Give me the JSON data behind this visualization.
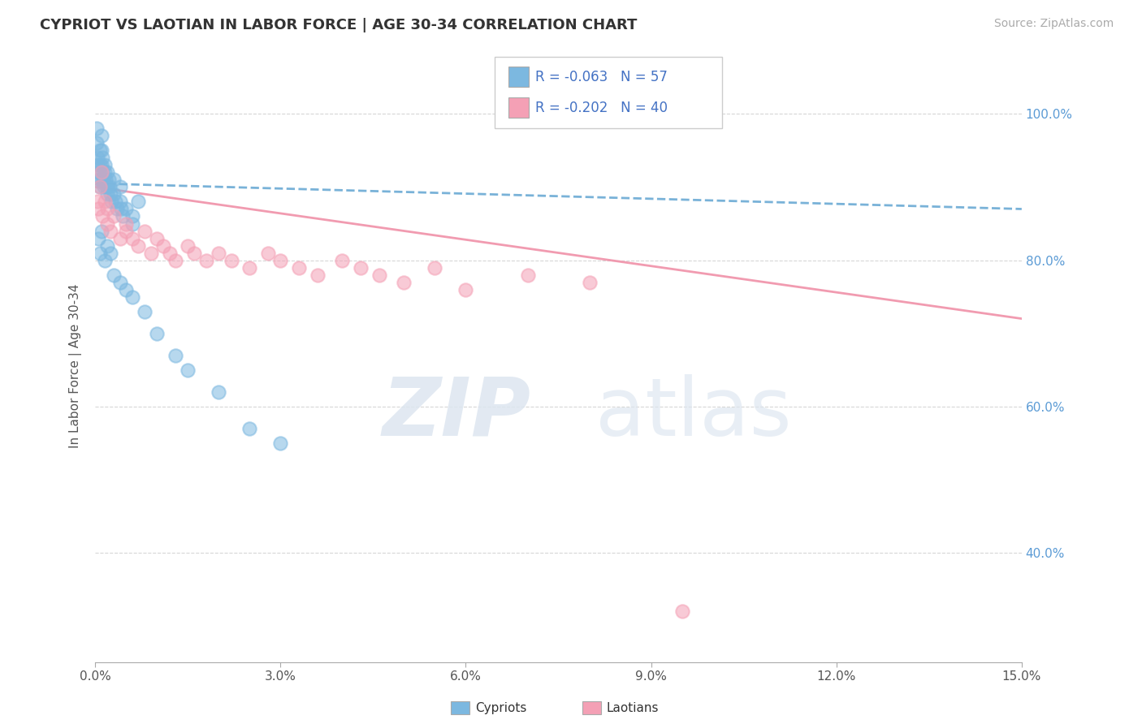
{
  "title": "CYPRIOT VS LAOTIAN IN LABOR FORCE | AGE 30-34 CORRELATION CHART",
  "source_text": "Source: ZipAtlas.com",
  "xlabel": "",
  "ylabel": "In Labor Force | Age 30-34",
  "xlim": [
    0.0,
    0.15
  ],
  "ylim": [
    0.25,
    1.06
  ],
  "xticks": [
    0.0,
    0.03,
    0.06,
    0.09,
    0.12,
    0.15
  ],
  "xtick_labels": [
    "0.0%",
    "3.0%",
    "6.0%",
    "9.0%",
    "12.0%",
    "15.0%"
  ],
  "yticks_right": [
    0.4,
    0.6,
    0.8,
    1.0
  ],
  "ytick_right_labels": [
    "40.0%",
    "60.0%",
    "80.0%",
    "100.0%"
  ],
  "legend_r1": "R = -0.063",
  "legend_n1": "N = 57",
  "legend_r2": "R = -0.202",
  "legend_n2": "N = 40",
  "cypriot_color": "#7cb8e0",
  "laotian_color": "#f4a0b5",
  "trend_blue_color": "#6baad4",
  "trend_pink_color": "#f090a8",
  "background_color": "#ffffff",
  "cypriot_x": [
    0.0002,
    0.0002,
    0.0003,
    0.0004,
    0.0005,
    0.0006,
    0.0007,
    0.0008,
    0.0008,
    0.0009,
    0.001,
    0.001,
    0.001,
    0.0012,
    0.0012,
    0.0013,
    0.0014,
    0.0015,
    0.0016,
    0.0017,
    0.0018,
    0.0019,
    0.002,
    0.002,
    0.0022,
    0.0023,
    0.0025,
    0.0026,
    0.003,
    0.003,
    0.0032,
    0.0035,
    0.004,
    0.004,
    0.0042,
    0.0045,
    0.005,
    0.006,
    0.006,
    0.007,
    0.0005,
    0.0008,
    0.001,
    0.0015,
    0.002,
    0.0025,
    0.003,
    0.004,
    0.005,
    0.006,
    0.008,
    0.01,
    0.013,
    0.015,
    0.02,
    0.025,
    0.03
  ],
  "cypriot_y": [
    0.98,
    0.96,
    0.94,
    0.93,
    0.92,
    0.91,
    0.9,
    0.95,
    0.93,
    0.91,
    0.97,
    0.95,
    0.93,
    0.94,
    0.92,
    0.91,
    0.9,
    0.93,
    0.92,
    0.91,
    0.9,
    0.89,
    0.92,
    0.9,
    0.91,
    0.9,
    0.89,
    0.88,
    0.91,
    0.89,
    0.88,
    0.87,
    0.9,
    0.88,
    0.87,
    0.86,
    0.87,
    0.86,
    0.85,
    0.88,
    0.83,
    0.81,
    0.84,
    0.8,
    0.82,
    0.81,
    0.78,
    0.77,
    0.76,
    0.75,
    0.73,
    0.7,
    0.67,
    0.65,
    0.62,
    0.57,
    0.55
  ],
  "laotian_x": [
    0.0003,
    0.0005,
    0.0008,
    0.001,
    0.0012,
    0.0015,
    0.002,
    0.002,
    0.0025,
    0.003,
    0.004,
    0.005,
    0.005,
    0.006,
    0.007,
    0.008,
    0.009,
    0.01,
    0.011,
    0.012,
    0.013,
    0.015,
    0.016,
    0.018,
    0.02,
    0.022,
    0.025,
    0.028,
    0.03,
    0.033,
    0.036,
    0.04,
    0.043,
    0.046,
    0.05,
    0.055,
    0.06,
    0.07,
    0.08,
    0.095
  ],
  "laotian_y": [
    0.88,
    0.87,
    0.9,
    0.92,
    0.86,
    0.88,
    0.85,
    0.87,
    0.84,
    0.86,
    0.83,
    0.85,
    0.84,
    0.83,
    0.82,
    0.84,
    0.81,
    0.83,
    0.82,
    0.81,
    0.8,
    0.82,
    0.81,
    0.8,
    0.81,
    0.8,
    0.79,
    0.81,
    0.8,
    0.79,
    0.78,
    0.8,
    0.79,
    0.78,
    0.77,
    0.79,
    0.76,
    0.78,
    0.77,
    0.32
  ],
  "trend_cy_x0": 0.0,
  "trend_cy_x1": 0.15,
  "trend_cy_y0": 0.905,
  "trend_cy_y1": 0.87,
  "trend_la_x0": 0.0,
  "trend_la_x1": 0.15,
  "trend_la_y0": 0.9,
  "trend_la_y1": 0.72
}
